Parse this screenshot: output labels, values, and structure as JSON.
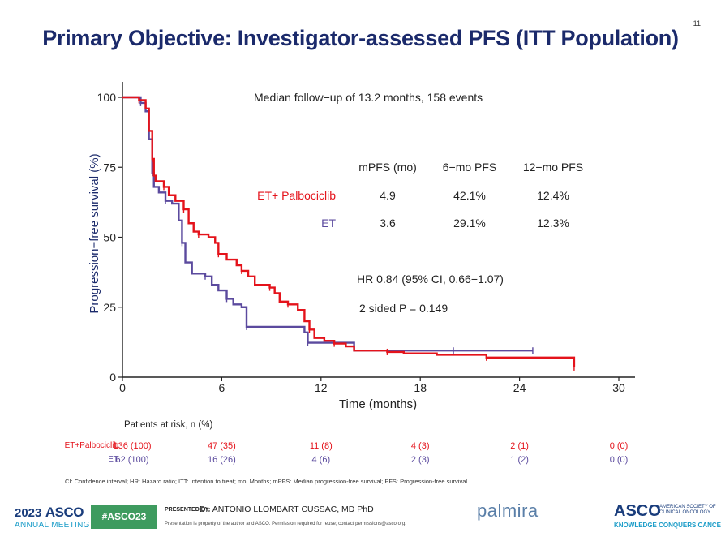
{
  "slide": {
    "title": "Primary Objective: Investigator-assessed PFS (ITT Population)",
    "number": "11"
  },
  "chart_data": {
    "type": "line",
    "xlabel": "Time (months)",
    "ylabel": "Progression−free survival (%)",
    "xlim": [
      0,
      30
    ],
    "ylim": [
      0,
      100
    ],
    "xticks": [
      "0",
      "6",
      "12",
      "18",
      "24",
      "30"
    ],
    "yticks": [
      "0",
      "25",
      "50",
      "75",
      "100"
    ],
    "grid": false,
    "colors": {
      "et_palbociclib": "#e4131b",
      "et": "#5b4a9e"
    },
    "series": [
      {
        "name": "ET+ Palbociclib",
        "x": [
          0,
          1.0,
          1.4,
          1.6,
          1.8,
          1.9,
          2.0,
          2.5,
          2.8,
          3.2,
          3.7,
          4.0,
          4.3,
          4.6,
          5.2,
          5.6,
          5.8,
          6.3,
          6.9,
          7.2,
          7.6,
          8.0,
          8.9,
          9.2,
          9.5,
          10.0,
          10.6,
          11.0,
          11.3,
          11.6,
          12.2,
          12.8,
          13.5,
          14.0,
          16.0,
          17.0,
          19.0,
          22.0,
          25.0,
          27.0,
          27.3
        ],
        "y": [
          100,
          99,
          96,
          88,
          78,
          72,
          70,
          68,
          65,
          63,
          60,
          55,
          52,
          51,
          50,
          48,
          44,
          42,
          40,
          38,
          36,
          33,
          32,
          30,
          27,
          26,
          24,
          20,
          17,
          14,
          13,
          12,
          11,
          9.5,
          9,
          8.5,
          8,
          7,
          7,
          7,
          3.5
        ]
      },
      {
        "name": "ET",
        "x": [
          0,
          1.1,
          1.4,
          1.6,
          1.8,
          1.9,
          2.2,
          2.6,
          3.0,
          3.4,
          3.6,
          3.8,
          4.2,
          5.0,
          5.4,
          5.8,
          6.3,
          6.7,
          7.2,
          7.5,
          8.5,
          11.0,
          11.2,
          13.8,
          14.0,
          20.0,
          24.8
        ],
        "y": [
          100,
          98,
          95,
          85,
          73,
          68,
          66,
          63,
          62,
          56,
          48,
          41,
          37,
          36,
          33,
          31,
          28,
          26,
          25,
          18,
          18,
          16,
          12.3,
          12.3,
          9.5,
          9.5,
          9.5
        ]
      }
    ],
    "annotations": {
      "followup": "Median follow−up of 13.2 months, 158 events",
      "table_headers": [
        "mPFS (mo)",
        "6−mo PFS",
        "12−mo PFS"
      ],
      "table_rows": [
        {
          "label": "ET+ Palbociclib",
          "mpfs": "4.9",
          "pfs6": "42.1%",
          "pfs12": "12.4%"
        },
        {
          "label": "ET",
          "mpfs": "3.6",
          "pfs6": "29.1%",
          "pfs12": "12.3%"
        }
      ],
      "hr": "HR 0.84 (95% CI, 0.66−1.07)",
      "p": "2 sided P = 0.149"
    }
  },
  "at_risk": {
    "title": "Patients at risk, n (%)",
    "rows": [
      {
        "label": "ET+Palbociclib",
        "values": [
          "136 (100)",
          "47 (35)",
          "11 (8)",
          "4 (3)",
          "2 (1)",
          "0 (0)"
        ]
      },
      {
        "label": "ET",
        "values": [
          "62 (100)",
          "16 (26)",
          "4 (6)",
          "2 (3)",
          "1 (2)",
          "0 (0)"
        ]
      }
    ]
  },
  "footnote": "CI: Confidence interval; HR: Hazard ratio; ITT: Intention  to treat; mo: Months; mPFS: Median progression-free survival; PFS: Progression-free survival.",
  "footer": {
    "year": "2023",
    "asco": "ASCO",
    "annual_meeting": "ANNUAL MEETING",
    "hashtag": "#ASCO23",
    "presented_by": "PRESENTED BY:",
    "presenter": "Dr. ANTONIO LLOMBART CUSSAC, MD PhD",
    "disclaimer": "Presentation is property of the author and ASCO. Permission required for reuse; contact permissions@asco.org.",
    "study_logo": "palmira",
    "society": "AMERICAN SOCIETY OF CLINICAL ONCOLOGY",
    "tagline": "KNOWLEDGE CONQUERS CANCER"
  }
}
